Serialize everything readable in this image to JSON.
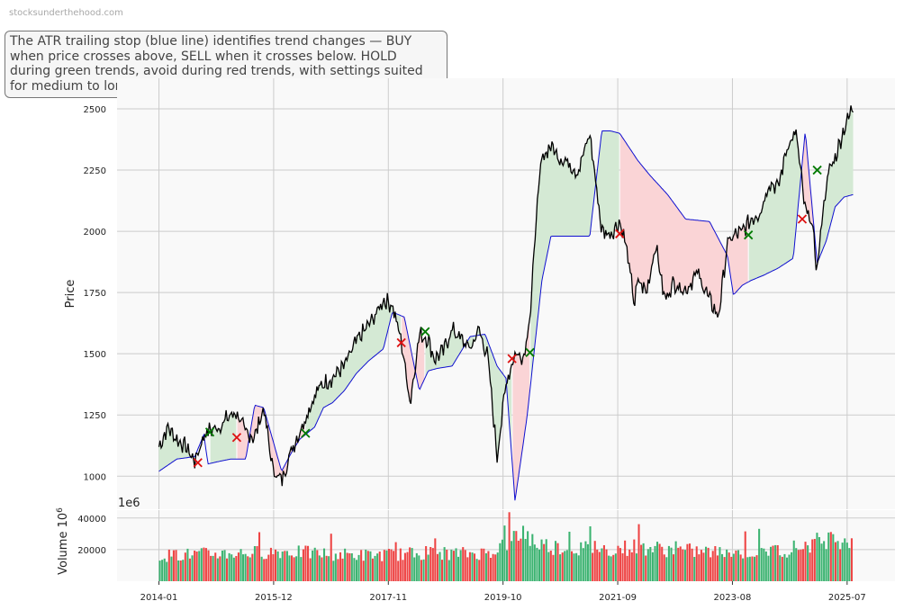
{
  "watermark": "stocksunderthehood.com",
  "annotation": "The ATR trailing stop (blue line) identifies trend changes — BUY when price crosses above, SELL when it crosses below. HOLD during green trends, avoid during red trends, with settings suited for medium to long-term investors.",
  "colors": {
    "price": "#000000",
    "stop": "#1010d0",
    "bull_fill": "#d4e9d4",
    "bear_fill": "#fad4d6",
    "buy": "#007a00",
    "sell": "#dd1111",
    "vol_up": "#3cb371",
    "vol_down": "#ee4444",
    "plot_bg": "#f9f9f9",
    "grid": "#cccccc"
  },
  "chart_data": {
    "type": "line",
    "price_axis": {
      "label": "Price",
      "ylim": [
        865,
        2625
      ],
      "ticks": [
        1000,
        1250,
        1500,
        1750,
        2000,
        2250,
        2500
      ]
    },
    "volume_axis": {
      "label": "Volume",
      "exponent_label": "1e6",
      "ylim": [
        0,
        45000
      ],
      "ticks": [
        20000,
        40000
      ]
    },
    "x_axis": {
      "range": [
        2013.3,
        2026.3
      ],
      "ticks": [
        "2014-01",
        "2015-12",
        "2017-11",
        "2019-10",
        "2021-09",
        "2023-08",
        "2025-07"
      ]
    },
    "grid": true,
    "series": [
      {
        "name": "Price",
        "x": [
          2014.0,
          2014.15,
          2014.3,
          2014.45,
          2014.6,
          2014.75,
          2014.82,
          2015.0,
          2015.15,
          2015.3,
          2015.45,
          2015.6,
          2015.75,
          2015.9,
          2016.05,
          2016.2,
          2016.35,
          2016.5,
          2016.65,
          2016.75,
          2016.9,
          2017.0,
          2017.1,
          2017.2,
          2017.3,
          2017.45,
          2017.6,
          2017.75,
          2017.9,
          2018.05,
          2018.2,
          2018.35,
          2018.5,
          2018.6,
          2018.75,
          2018.9,
          2019.05,
          2019.2,
          2019.35,
          2019.5,
          2019.65,
          2019.8,
          2019.95,
          2020.1,
          2020.22,
          2020.3,
          2020.4,
          2020.55,
          2020.7,
          2020.85,
          2021.0,
          2021.2,
          2021.4,
          2021.55,
          2021.7,
          2021.8,
          2021.95,
          2022.0,
          2022.15,
          2022.3,
          2022.45,
          2022.6,
          2022.8,
          2023.0,
          2023.2,
          2023.35,
          2023.5,
          2023.6,
          2023.75,
          2023.9,
          2024.05,
          2024.2,
          2024.35,
          2024.5,
          2024.65,
          2024.8,
          2024.9,
          2025.0,
          2025.1,
          2025.2,
          2025.3,
          2025.45,
          2025.6
        ],
        "y": [
          1120,
          1200,
          1150,
          1120,
          1060,
          1165,
          1185,
          1200,
          1240,
          1260,
          1175,
          1160,
          1280,
          1030,
          980,
          1100,
          1180,
          1270,
          1350,
          1380,
          1400,
          1430,
          1450,
          1500,
          1550,
          1600,
          1650,
          1720,
          1700,
          1550,
          1300,
          1580,
          1560,
          1480,
          1510,
          1600,
          1560,
          1520,
          1600,
          1480,
          1080,
          1380,
          1500,
          1490,
          1700,
          2050,
          2300,
          2350,
          2300,
          2280,
          2240,
          2400,
          2000,
          1990,
          2040,
          1950,
          1700,
          1800,
          1750,
          1950,
          1720,
          1790,
          1760,
          1830,
          1720,
          1650,
          1950,
          1980,
          2000,
          2050,
          2080,
          2200,
          2180,
          2350,
          2400,
          2080,
          2050,
          1840,
          2100,
          2250,
          2300,
          2420,
          2510
        ]
      },
      {
        "name": "ATR trailing stop",
        "x": [
          2014.0,
          2014.3,
          2014.6,
          2014.75,
          2014.82,
          2015.0,
          2015.2,
          2015.45,
          2015.6,
          2015.75,
          2016.05,
          2016.2,
          2016.35,
          2016.6,
          2016.75,
          2016.9,
          2017.1,
          2017.3,
          2017.5,
          2017.75,
          2017.9,
          2018.1,
          2018.35,
          2018.5,
          2018.65,
          2018.9,
          2019.2,
          2019.45,
          2019.65,
          2019.8,
          2019.95,
          2020.15,
          2020.4,
          2020.55,
          2020.8,
          2021.0,
          2021.2,
          2021.4,
          2021.55,
          2021.7,
          2022.0,
          2022.2,
          2022.5,
          2022.8,
          2023.2,
          2023.5,
          2023.6,
          2023.75,
          2023.9,
          2024.1,
          2024.35,
          2024.6,
          2024.8,
          2025.0,
          2025.15,
          2025.3,
          2025.45,
          2025.6
        ],
        "y": [
          1020,
          1070,
          1080,
          1170,
          1050,
          1060,
          1070,
          1070,
          1290,
          1280,
          1020,
          1090,
          1150,
          1200,
          1280,
          1300,
          1350,
          1420,
          1470,
          1520,
          1670,
          1650,
          1350,
          1430,
          1440,
          1450,
          1570,
          1580,
          1450,
          1400,
          900,
          1240,
          1800,
          1980,
          1980,
          1980,
          1980,
          2410,
          2410,
          2400,
          2290,
          2230,
          2150,
          2050,
          2040,
          1900,
          1740,
          1780,
          1800,
          1820,
          1850,
          1890,
          2410,
          1870,
          1960,
          2100,
          2140,
          2150
        ]
      }
    ],
    "buy_signals": {
      "x": [
        2014.85,
        2016.45,
        2018.45,
        2020.2,
        2023.85,
        2025.0
      ],
      "y": [
        1180,
        1175,
        1590,
        1505,
        1985,
        2250
      ]
    },
    "sell_signals": {
      "x": [
        2014.65,
        2015.3,
        2018.05,
        2019.9,
        2021.7,
        2024.75
      ],
      "y": [
        1055,
        1158,
        1545,
        1480,
        1990,
        2050
      ]
    },
    "bands": [
      {
        "trend": "bull",
        "x": [
          2014.0,
          2014.65
        ]
      },
      {
        "trend": "bull",
        "x": [
          2014.85,
          2015.3
        ]
      },
      {
        "trend": "bear",
        "x": [
          2015.3,
          2016.45
        ]
      },
      {
        "trend": "bull",
        "x": [
          2016.45,
          2018.05
        ]
      },
      {
        "trend": "bear",
        "x": [
          2018.05,
          2018.45
        ]
      },
      {
        "trend": "bull",
        "x": [
          2018.45,
          2019.9
        ]
      },
      {
        "trend": "bear",
        "x": [
          2019.9,
          2020.2
        ]
      },
      {
        "trend": "bull",
        "x": [
          2020.2,
          2021.7
        ]
      },
      {
        "trend": "bear",
        "x": [
          2021.7,
          2023.85
        ]
      },
      {
        "trend": "bull",
        "x": [
          2023.85,
          2024.75
        ]
      },
      {
        "trend": "bear",
        "x": [
          2024.75,
          2025.0
        ]
      },
      {
        "trend": "bull",
        "x": [
          2025.0,
          2025.6
        ]
      }
    ],
    "volume": {
      "x": [
        2014.0,
        2014.5,
        2015.0,
        2015.5,
        2016.0,
        2016.5,
        2017.0,
        2017.5,
        2018.0,
        2018.5,
        2019.0,
        2019.5,
        2019.9,
        2020.1,
        2020.3,
        2020.6,
        2021.0,
        2021.5,
        2022.0,
        2022.5,
        2023.0,
        2023.5,
        2024.0,
        2024.5,
        2024.9,
        2025.2,
        2025.6
      ],
      "y": [
        16000,
        17000,
        17500,
        18000,
        19000,
        18000,
        17000,
        16500,
        17000,
        18000,
        17500,
        18000,
        26000,
        32000,
        24000,
        22000,
        21000,
        20000,
        22000,
        20000,
        19000,
        18000,
        18500,
        20000,
        24000,
        27000,
        27000
      ]
    }
  }
}
